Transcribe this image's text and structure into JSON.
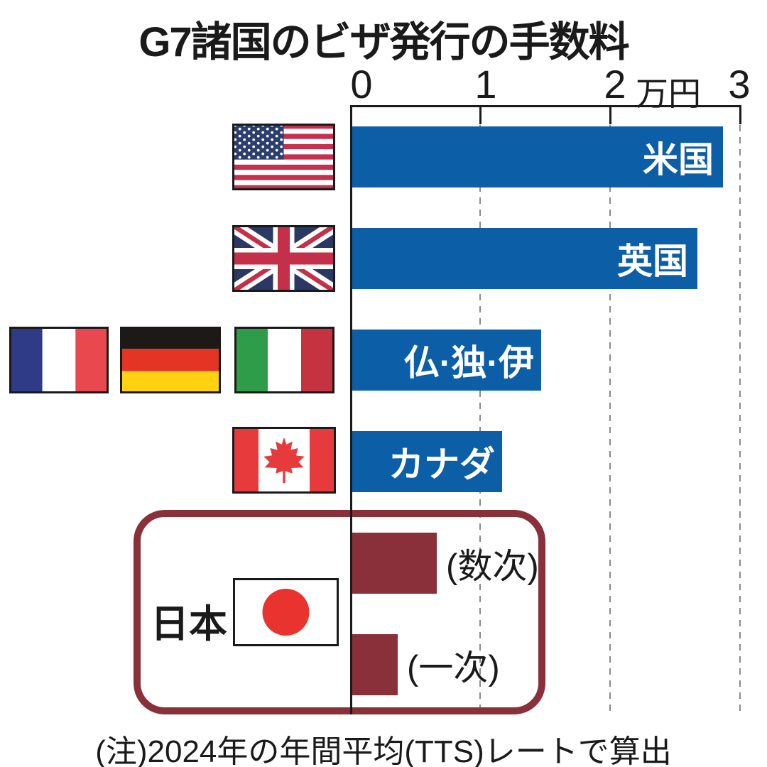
{
  "page": {
    "title": "G7諸国のビザ発行の手数料",
    "note": "(注)2024年の年間平均(TTS)レートで算出"
  },
  "axis": {
    "tick_labels": [
      "0",
      "1",
      "2",
      "3"
    ],
    "unit_label": "万円"
  },
  "colors": {
    "bar_blue": "#0c5fa6",
    "japan_dark_red": "#8a303a",
    "grid_gray": "#8a8a8a",
    "text_black": "#1a1a1a"
  },
  "bars": [
    {
      "country": "米国",
      "flag_icon": "usa-flag-icon",
      "value": 2.85
    },
    {
      "country": "英国",
      "flag_icon": "uk-flag-icon",
      "value": 2.65
    },
    {
      "country": "仏·独·伊",
      "flag_icon": "france-germany-italy-flag-icons",
      "value": 1.45
    },
    {
      "country": "カナダ",
      "flag_icon": "canada-flag-icon",
      "value": 1.15
    }
  ],
  "japan": {
    "label": "日本",
    "flag_icon": "japan-flag-icon",
    "bars": [
      {
        "label": "(数次)",
        "value": 0.65
      },
      {
        "label": "(一次)",
        "value": 0.35
      }
    ]
  },
  "chart_data": {
    "type": "bar",
    "orientation": "horizontal",
    "title": "G7諸国のビザ発行の手数料",
    "categories": [
      "米国",
      "英国",
      "仏·独·伊",
      "カナダ",
      "日本(数次)",
      "日本(一次)"
    ],
    "values": [
      2.85,
      2.65,
      1.45,
      1.15,
      0.65,
      0.35
    ],
    "xlabel": "万円",
    "xlim": [
      0,
      3
    ],
    "xticks": [
      0,
      1,
      2,
      3
    ],
    "grid": "vertical-dashed",
    "legend": "none",
    "bar_colors": {
      "g7_others": "#0c5fa6",
      "japan": "#8a303a"
    },
    "note": "(注)2024年の年間平均(TTS)レートで算出"
  }
}
